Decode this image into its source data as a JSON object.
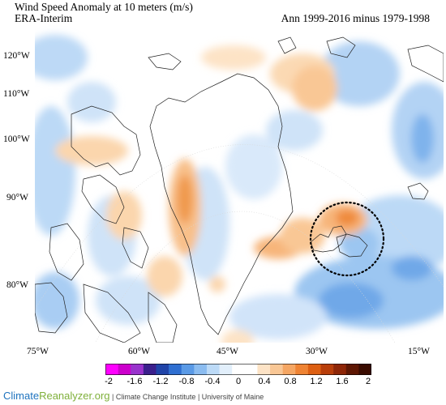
{
  "header": {
    "title": "Wind Speed Anomaly at 10 meters (m/s)",
    "dataset": "ERA-Interim",
    "period": "Ann 1999-2016 minus 1979-1998"
  },
  "map": {
    "lat_labels": [
      "120°W",
      "110°W",
      "100°W",
      "90°W",
      "80°W"
    ],
    "lon_labels": [
      "75°W",
      "60°W",
      "45°W",
      "30°W",
      "15°W"
    ]
  },
  "legend": {
    "labels": [
      "-2",
      "-1.6",
      "-1.2",
      "-0.8",
      "-0.4",
      "0",
      "0.4",
      "0.8",
      "1.2",
      "1.6",
      "2"
    ],
    "colors": [
      "#ff00ff",
      "#cc00cc",
      "#9933cc",
      "#3b1f8c",
      "#2044a8",
      "#2f6fd1",
      "#5a9ae6",
      "#8bbcf0",
      "#bcdaf7",
      "#e2effb",
      "#ffffff",
      "#ffffff",
      "#fde3c6",
      "#f9c795",
      "#f5a663",
      "#ef8333",
      "#dd5f12",
      "#b83e0a",
      "#8e2607",
      "#5e1703",
      "#3a0c01"
    ]
  },
  "footer": {
    "brand_part1": "Climate",
    "brand_part2": "Reanalyzer.org",
    "institution": "| Climate Change Institute | University of Maine"
  },
  "colors": {
    "positive": "#ef8333",
    "negative": "#5a9ae6",
    "highlight_circle": "#000000"
  }
}
